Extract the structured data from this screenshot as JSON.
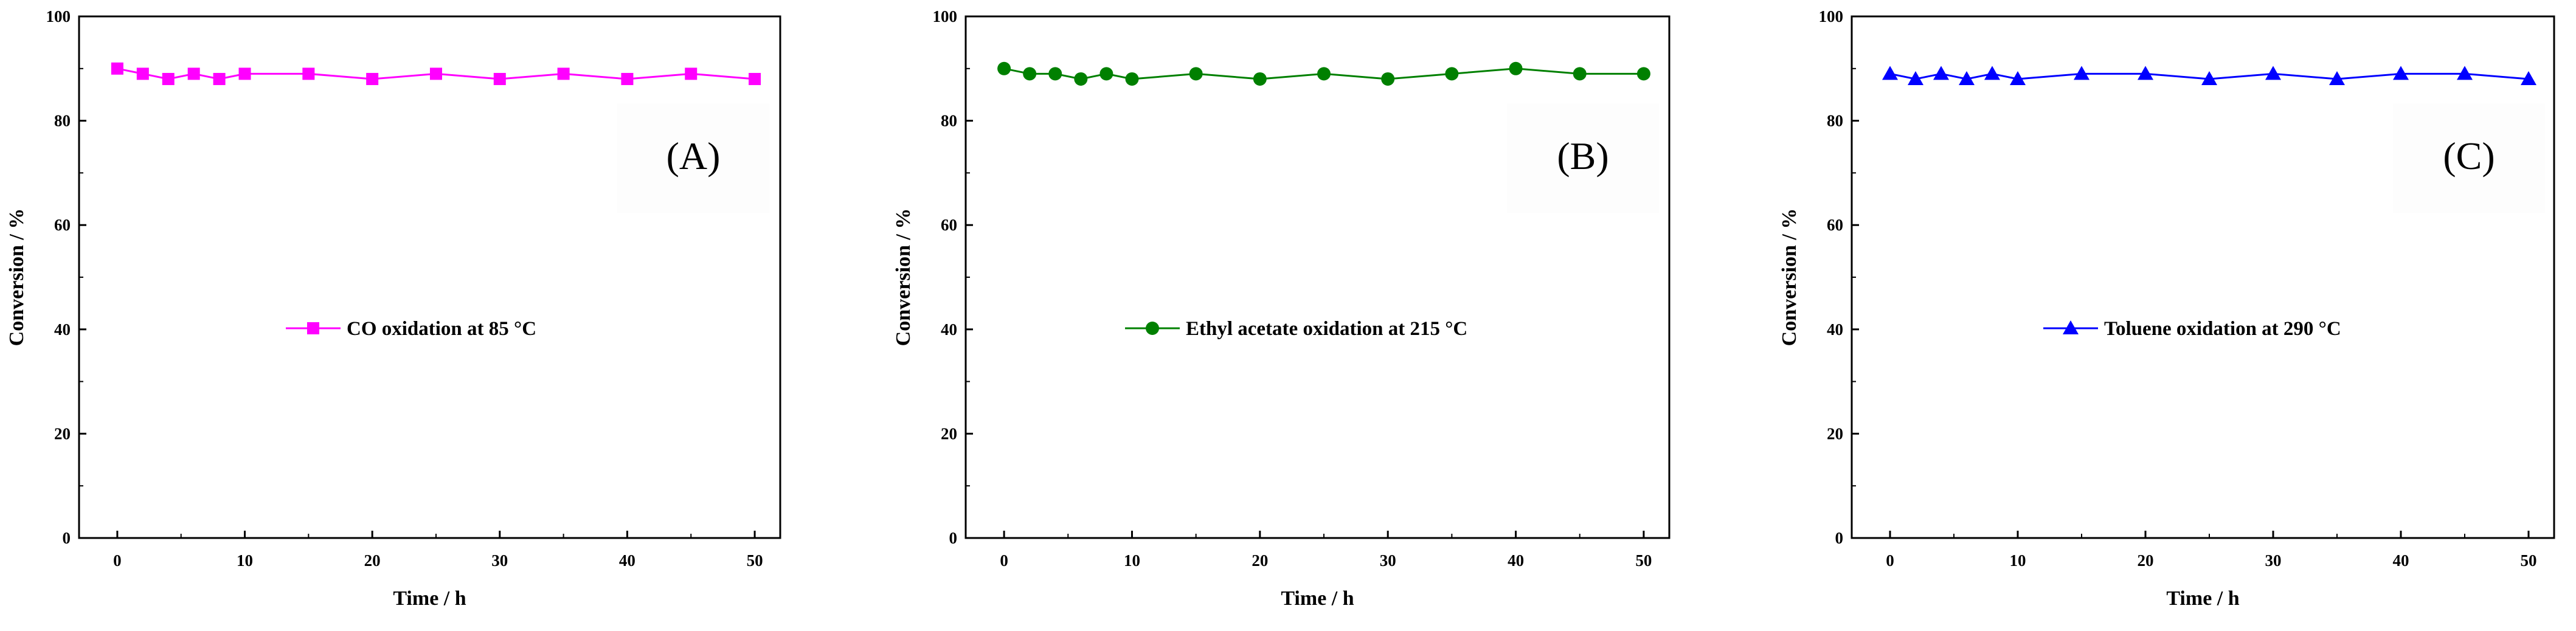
{
  "chart_data": [
    {
      "type": "line",
      "panel_label": "(A)",
      "xlabel": "Time / h",
      "ylabel": "Conversion / %",
      "xlim": [
        -3,
        52
      ],
      "ylim": [
        0,
        100
      ],
      "xticks": [
        0,
        10,
        20,
        30,
        40,
        50
      ],
      "yticks": [
        0,
        20,
        40,
        60,
        80,
        100
      ],
      "legend_position": "center",
      "series": [
        {
          "name": "CO oxidation at 85 °C",
          "color": "#ff00ff",
          "marker": "square",
          "x": [
            0,
            2,
            4,
            6,
            8,
            10,
            15,
            20,
            25,
            30,
            35,
            40,
            45,
            50
          ],
          "y": [
            90,
            89,
            88,
            89,
            88,
            89,
            89,
            88,
            89,
            88,
            89,
            88,
            89,
            88
          ]
        }
      ]
    },
    {
      "type": "line",
      "panel_label": "(B)",
      "xlabel": "Time / h",
      "ylabel": "Conversion / %",
      "xlim": [
        -3,
        52
      ],
      "ylim": [
        0,
        100
      ],
      "xticks": [
        0,
        10,
        20,
        30,
        40,
        50
      ],
      "yticks": [
        0,
        20,
        40,
        60,
        80,
        100
      ],
      "legend_position": "center",
      "series": [
        {
          "name": "Ethyl acetate oxidation at 215 °C",
          "color": "#008000",
          "marker": "circle",
          "x": [
            0,
            2,
            4,
            6,
            8,
            10,
            15,
            20,
            25,
            30,
            35,
            40,
            45,
            50
          ],
          "y": [
            90,
            89,
            89,
            88,
            89,
            88,
            89,
            88,
            89,
            88,
            89,
            90,
            89,
            89
          ]
        }
      ]
    },
    {
      "type": "line",
      "panel_label": "(C)",
      "xlabel": "Time / h",
      "ylabel": "Conversion / %",
      "xlim": [
        -3,
        52
      ],
      "ylim": [
        0,
        100
      ],
      "xticks": [
        0,
        10,
        20,
        30,
        40,
        50
      ],
      "yticks": [
        0,
        20,
        40,
        60,
        80,
        100
      ],
      "legend_position": "center",
      "series": [
        {
          "name": "Toluene oxidation at 290 °C",
          "color": "#0000ff",
          "marker": "triangle",
          "x": [
            0,
            2,
            4,
            6,
            8,
            10,
            15,
            20,
            25,
            30,
            35,
            40,
            45,
            50
          ],
          "y": [
            89,
            88,
            89,
            88,
            89,
            88,
            89,
            89,
            88,
            89,
            88,
            89,
            89,
            88
          ]
        }
      ]
    }
  ]
}
